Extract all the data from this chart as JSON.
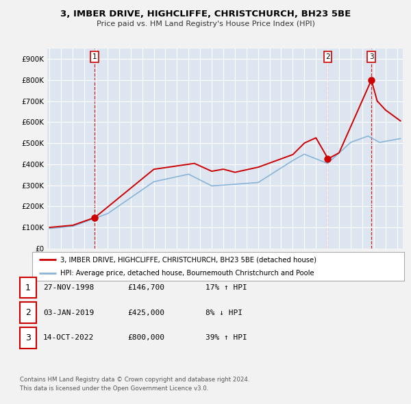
{
  "title1": "3, IMBER DRIVE, HIGHCLIFFE, CHRISTCHURCH, BH23 5BE",
  "title2": "Price paid vs. HM Land Registry's House Price Index (HPI)",
  "bg_color": "#f2f2f2",
  "plot_bg": "#dde5f0",
  "grid_color": "#ffffff",
  "hpi_color": "#89b4d9",
  "price_color": "#cc0000",
  "vline_color": "#cc0000",
  "ylim": [
    0,
    950000
  ],
  "yticks": [
    0,
    100000,
    200000,
    300000,
    400000,
    500000,
    600000,
    700000,
    800000,
    900000
  ],
  "ytick_labels": [
    "£0",
    "£100K",
    "£200K",
    "£300K",
    "£400K",
    "£500K",
    "£600K",
    "£700K",
    "£800K",
    "£900K"
  ],
  "xlim_start": 1994.8,
  "xlim_end": 2025.5,
  "xticks": [
    1995,
    1996,
    1997,
    1998,
    1999,
    2000,
    2001,
    2002,
    2003,
    2004,
    2005,
    2006,
    2007,
    2008,
    2009,
    2010,
    2011,
    2012,
    2013,
    2014,
    2015,
    2016,
    2017,
    2018,
    2019,
    2020,
    2021,
    2022,
    2023,
    2024,
    2025
  ],
  "sales": [
    {
      "year": 1998.9,
      "price": 146700,
      "label": "1"
    },
    {
      "year": 2019.02,
      "price": 425000,
      "label": "2"
    },
    {
      "year": 2022.79,
      "price": 800000,
      "label": "3"
    }
  ],
  "legend_price_label": "3, IMBER DRIVE, HIGHCLIFFE, CHRISTCHURCH, BH23 5BE (detached house)",
  "legend_hpi_label": "HPI: Average price, detached house, Bournemouth Christchurch and Poole",
  "table_rows": [
    {
      "num": "1",
      "date": "27-NOV-1998",
      "price": "£146,700",
      "hpi": "17% ↑ HPI"
    },
    {
      "num": "2",
      "date": "03-JAN-2019",
      "price": "£425,000",
      "hpi": "8% ↓ HPI"
    },
    {
      "num": "3",
      "date": "14-OCT-2022",
      "price": "£800,000",
      "hpi": "39% ↑ HPI"
    }
  ],
  "footnote1": "Contains HM Land Registry data © Crown copyright and database right 2024.",
  "footnote2": "This data is licensed under the Open Government Licence v3.0."
}
